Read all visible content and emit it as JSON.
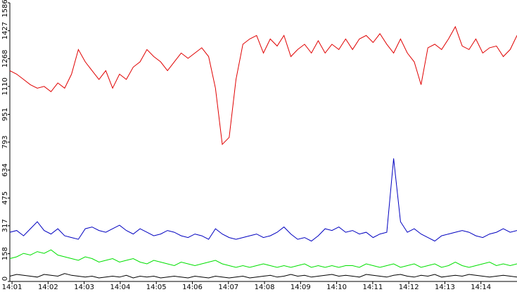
{
  "chart_data": {
    "type": "line",
    "ylim": [
      0,
      1586
    ],
    "yticks": [
      0,
      158,
      317,
      475,
      634,
      793,
      951,
      1110,
      1268,
      1427,
      1586
    ],
    "xlim": [
      0.94,
      15
    ],
    "xticks": [
      {
        "value": 1,
        "label": "14:01"
      },
      {
        "value": 2,
        "label": "14:02"
      },
      {
        "value": 3,
        "label": "14:03"
      },
      {
        "value": 4,
        "label": "14:04"
      },
      {
        "value": 5,
        "label": "14:05"
      },
      {
        "value": 6,
        "label": "14:06"
      },
      {
        "value": 7,
        "label": "14:07"
      },
      {
        "value": 8,
        "label": "14:08"
      },
      {
        "value": 9,
        "label": "14:09"
      },
      {
        "value": 10,
        "label": "14:10"
      },
      {
        "value": 11,
        "label": "14:11"
      },
      {
        "value": 12,
        "label": "14:12"
      },
      {
        "value": 13,
        "label": "14:13"
      },
      {
        "value": 14,
        "label": "14:14"
      }
    ],
    "series": [
      {
        "color": "#e00000",
        "values": [
          1200,
          1180,
          1150,
          1120,
          1100,
          1110,
          1080,
          1130,
          1100,
          1180,
          1320,
          1250,
          1200,
          1150,
          1200,
          1100,
          1180,
          1150,
          1220,
          1250,
          1320,
          1280,
          1250,
          1200,
          1250,
          1300,
          1270,
          1300,
          1330,
          1280,
          1100,
          780,
          820,
          1150,
          1350,
          1380,
          1400,
          1300,
          1380,
          1340,
          1400,
          1280,
          1320,
          1350,
          1300,
          1370,
          1300,
          1350,
          1320,
          1380,
          1320,
          1380,
          1400,
          1360,
          1410,
          1350,
          1300,
          1380,
          1300,
          1250,
          1120,
          1330,
          1350,
          1320,
          1380,
          1450,
          1340,
          1320,
          1380,
          1300,
          1330,
          1340,
          1280,
          1320,
          1400
        ]
      },
      {
        "color": "#0000c0",
        "values": [
          280,
          290,
          260,
          300,
          340,
          290,
          270,
          300,
          260,
          250,
          240,
          300,
          310,
          290,
          280,
          300,
          320,
          290,
          270,
          300,
          280,
          260,
          270,
          290,
          280,
          260,
          250,
          270,
          260,
          240,
          300,
          270,
          250,
          240,
          250,
          260,
          270,
          250,
          260,
          280,
          310,
          270,
          240,
          250,
          230,
          260,
          300,
          290,
          310,
          280,
          290,
          270,
          280,
          250,
          270,
          280,
          700,
          340,
          280,
          300,
          270,
          250,
          230,
          260,
          270,
          280,
          290,
          280,
          260,
          250,
          270,
          280,
          300,
          280,
          290
        ]
      },
      {
        "color": "#00e000",
        "values": [
          130,
          140,
          160,
          150,
          170,
          160,
          180,
          150,
          140,
          130,
          120,
          140,
          130,
          110,
          120,
          130,
          110,
          120,
          130,
          110,
          100,
          120,
          110,
          100,
          90,
          110,
          100,
          90,
          100,
          110,
          120,
          100,
          90,
          80,
          90,
          80,
          90,
          100,
          90,
          80,
          90,
          80,
          90,
          100,
          80,
          90,
          80,
          90,
          80,
          90,
          90,
          80,
          100,
          90,
          80,
          90,
          100,
          80,
          90,
          100,
          80,
          90,
          100,
          80,
          90,
          110,
          90,
          80,
          90,
          100,
          110,
          90,
          100,
          90,
          100
        ]
      },
      {
        "color": "#000000",
        "values": [
          30,
          40,
          35,
          30,
          25,
          40,
          35,
          30,
          45,
          35,
          30,
          25,
          30,
          20,
          25,
          30,
          25,
          35,
          20,
          30,
          25,
          30,
          20,
          25,
          30,
          25,
          20,
          30,
          25,
          20,
          30,
          25,
          20,
          25,
          30,
          20,
          25,
          30,
          35,
          25,
          30,
          40,
          30,
          35,
          25,
          30,
          35,
          40,
          30,
          35,
          30,
          25,
          40,
          35,
          30,
          25,
          35,
          40,
          30,
          25,
          35,
          30,
          40,
          25,
          30,
          35,
          30,
          40,
          35,
          30,
          25,
          30,
          35,
          30,
          25
        ]
      }
    ]
  }
}
